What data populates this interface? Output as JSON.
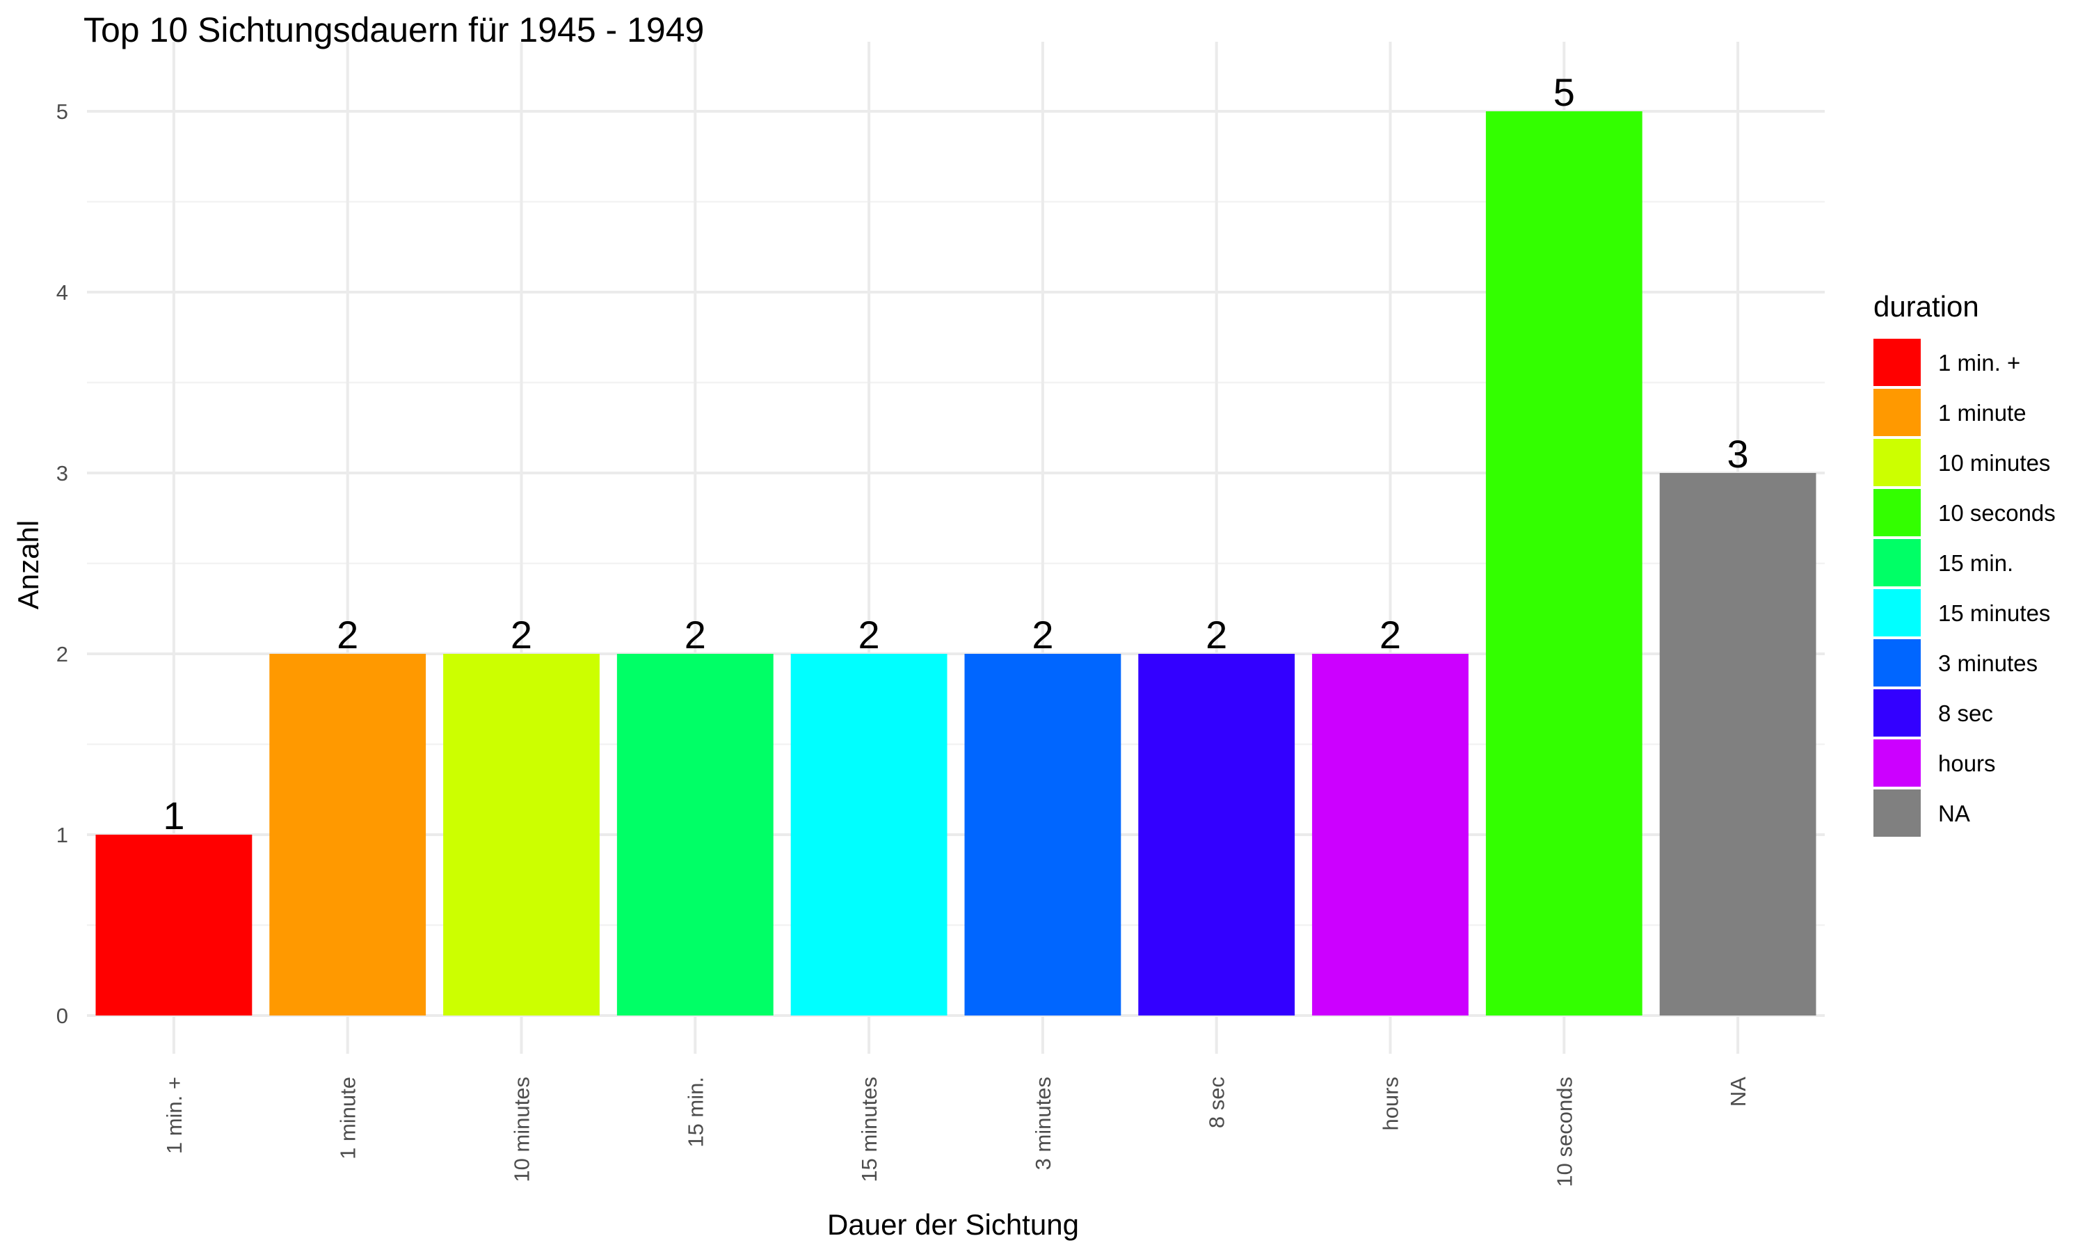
{
  "chart_data": {
    "type": "bar",
    "title": "Top 10 Sichtungsdauern für 1945 - 1949",
    "xlabel": "Dauer der Sichtung",
    "ylabel": "Anzahl",
    "ylim": [
      0,
      5.3
    ],
    "y_ticks": [
      0,
      1,
      2,
      3,
      4,
      5
    ],
    "grid": true,
    "categories": [
      "1 min. +",
      "1 minute",
      "10 minutes",
      "15 min.",
      "15 minutes",
      "3 minutes",
      "8 sec",
      "hours",
      "10 seconds",
      "NA"
    ],
    "values": [
      1,
      2,
      2,
      2,
      2,
      2,
      2,
      2,
      5,
      3
    ],
    "bar_colors": [
      "#FF0000",
      "#FF9900",
      "#CCFF00",
      "#00FF66",
      "#00FFFF",
      "#0066FF",
      "#3300FF",
      "#CC00FF",
      "#33FF00",
      "#808080"
    ],
    "legend": {
      "title": "duration",
      "position": "right",
      "entries": [
        {
          "label": "1 min. +",
          "color": "#FF0000"
        },
        {
          "label": "1 minute",
          "color": "#FF9900"
        },
        {
          "label": "10 minutes",
          "color": "#CCFF00"
        },
        {
          "label": "10 seconds",
          "color": "#33FF00"
        },
        {
          "label": "15 min.",
          "color": "#00FF66"
        },
        {
          "label": "15 minutes",
          "color": "#00FFFF"
        },
        {
          "label": "3 minutes",
          "color": "#0066FF"
        },
        {
          "label": "8 sec",
          "color": "#3300FF"
        },
        {
          "label": "hours",
          "color": "#CC00FF"
        },
        {
          "label": "NA",
          "color": "#808080"
        }
      ]
    }
  }
}
